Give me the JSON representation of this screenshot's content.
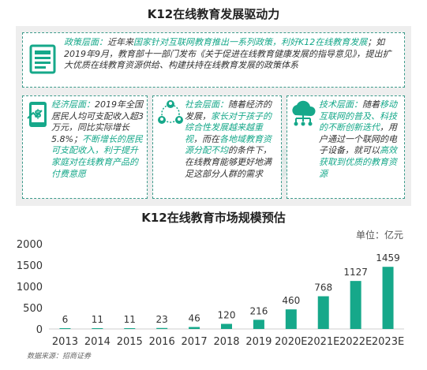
{
  "top_title": "K12在线教育发展驱动力",
  "watermark": "iUP 服务",
  "policy": {
    "head": "政策层面：",
    "text1": "近年来",
    "hl1": "国家针对互联网教育推出一系列政策，利好K12在线教育发展",
    "text2": "；如2019年9月，教育部十一部门发布《关于促进在线教育健康发展的指导意见》，提出扩大优质在线教育资源供给、构建扶持在线教育发展的政策体系"
  },
  "economy": {
    "head": "经济层面：",
    "text1": "2019年全国居民人均可支配收入超3万元，同比实际增长5.8%；",
    "hl1": "不断增长的居民可支配收入，利于提升家庭对在线教育产品的付费意愿"
  },
  "society": {
    "head": "社会层面：",
    "text1": "随着经济的发展，",
    "hl1": "家长对于孩子的综合性发展越来越重视",
    "text2": "，而在",
    "hl2": "各地域教育资源分配不均",
    "text3": "的条件下，在线教育能够更好地满足这部分人群的需求"
  },
  "tech": {
    "head": "技术层面：",
    "text1": "随着",
    "hl1": "移动互联网的普及、科技的不断创新迭代",
    "text2": "，用户通过一个联网的电子设备，就可以",
    "hl2": "高效获取到优质的教育资源"
  },
  "unit_label": "单位：亿元",
  "source_label": "数据来源：招商证券",
  "colors": {
    "accent": "#16a88a",
    "bar": "#16a88a",
    "icon": "#16a88a"
  },
  "icons": [
    "document-icon",
    "money-phone-icon",
    "people-network-icon",
    "cloud-network-icon"
  ],
  "chart_data": {
    "type": "bar",
    "title": "K12在线教育市场规模预估",
    "categories": [
      "2013",
      "2014",
      "2015",
      "2016",
      "2017",
      "2018",
      "2019",
      "2020E",
      "2021E",
      "2022E",
      "2023E"
    ],
    "values": [
      6,
      11,
      11,
      23,
      46,
      120,
      216,
      460,
      768,
      1127,
      1459
    ],
    "ylim": [
      0,
      2000
    ],
    "yticks": [
      0,
      500,
      1000,
      1500,
      2000
    ],
    "xlabel": "",
    "ylabel": "",
    "grid": false,
    "data_labels": true
  }
}
